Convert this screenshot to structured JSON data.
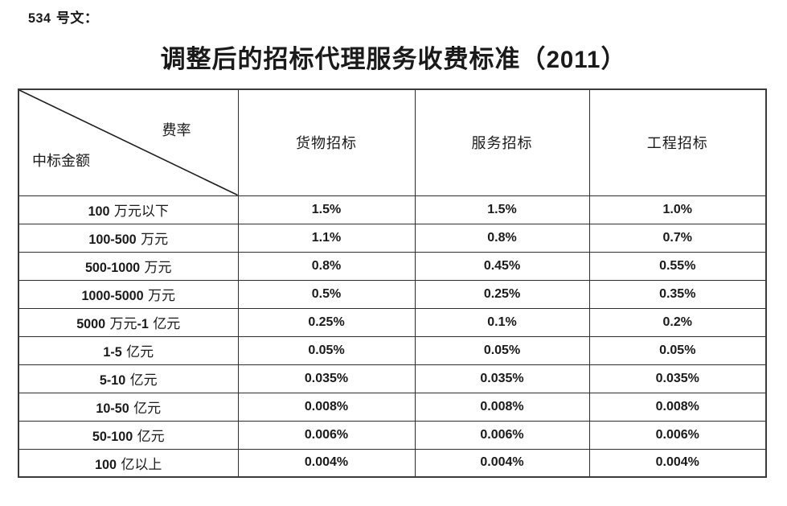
{
  "page": {
    "doc_ref": "534 号文：",
    "title": "调整后的招标代理服务收费标准（2011）"
  },
  "colors": {
    "ink": "#1a1a1a",
    "table_border": "#3a3a3a",
    "background": "#ffffff"
  },
  "table": {
    "corner": {
      "top_right_label": "费率",
      "bottom_left_label": "中标金额"
    },
    "columns": [
      "货物招标",
      "服务招标",
      "工程招标"
    ],
    "rows": [
      {
        "label": "100 万元以下",
        "values": [
          "1.5%",
          "1.5%",
          "1.0%"
        ]
      },
      {
        "label": "100-500 万元",
        "values": [
          "1.1%",
          "0.8%",
          "0.7%"
        ]
      },
      {
        "label": "500-1000 万元",
        "values": [
          "0.8%",
          "0.45%",
          "0.55%"
        ]
      },
      {
        "label": "1000-5000 万元",
        "values": [
          "0.5%",
          "0.25%",
          "0.35%"
        ]
      },
      {
        "label": "5000 万元-1 亿元",
        "values": [
          "0.25%",
          "0.1%",
          "0.2%"
        ]
      },
      {
        "label": "1-5 亿元",
        "values": [
          "0.05%",
          "0.05%",
          "0.05%"
        ]
      },
      {
        "label": "5-10 亿元",
        "values": [
          "0.035%",
          "0.035%",
          "0.035%"
        ]
      },
      {
        "label": "10-50 亿元",
        "values": [
          "0.008%",
          "0.008%",
          "0.008%"
        ]
      },
      {
        "label": "50-100 亿元",
        "values": [
          "0.006%",
          "0.006%",
          "0.006%"
        ]
      },
      {
        "label": "100 亿以上",
        "values": [
          "0.004%",
          "0.004%",
          "0.004%"
        ]
      }
    ]
  }
}
